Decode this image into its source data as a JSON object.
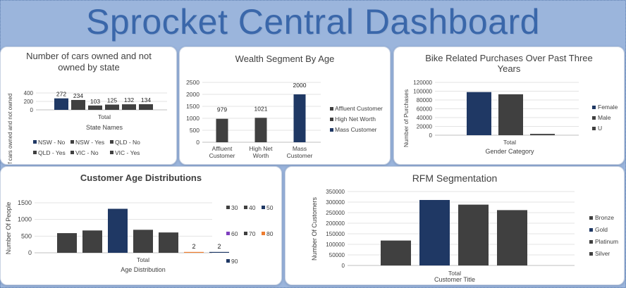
{
  "dashboard": {
    "title": "Sprocket Central Dashboard"
  },
  "colors": {
    "navy": "#1f3864",
    "dark": "#404040",
    "orange": "#ed7d31",
    "purple": "#7f3fbf",
    "background": "#9bb5dc"
  },
  "chart_data": [
    {
      "type": "bar",
      "title": "Number of cars owned and not owned by state",
      "xlabel": "State Names",
      "ylabel": "of cars owned and not owned",
      "categories": [
        "Total"
      ],
      "series": [
        {
          "name": "NSW - No",
          "values": [
            272
          ]
        },
        {
          "name": "NSW - Yes",
          "values": [
            234
          ]
        },
        {
          "name": "QLD - No",
          "values": [
            103
          ]
        },
        {
          "name": "QLD - Yes",
          "values": [
            125
          ]
        },
        {
          "name": "VIC - No",
          "values": [
            132
          ]
        },
        {
          "name": "VIC - Yes",
          "values": [
            134
          ]
        }
      ],
      "yticks": [
        0,
        200,
        400
      ],
      "ylim": [
        0,
        400
      ],
      "legend": "bottom",
      "grid": true
    },
    {
      "type": "bar",
      "title": "Wealth Segment By Age",
      "categories": [
        "Affluent Customer",
        "High Net Worth",
        "Mass Customer"
      ],
      "category_lines": [
        [
          "Affluent",
          "Customer"
        ],
        [
          "High Net",
          "Worth"
        ],
        [
          "Mass",
          "Customer"
        ]
      ],
      "series": [
        {
          "name": "Affluent Customer",
          "values": [
            979,
            null,
            null
          ]
        },
        {
          "name": "High Net Worth",
          "values": [
            null,
            1021,
            null
          ]
        },
        {
          "name": "Mass Customer",
          "values": [
            null,
            null,
            2000
          ]
        }
      ],
      "yticks": [
        0,
        500,
        1000,
        1500,
        2000,
        2500
      ],
      "ylim": [
        0,
        2500
      ],
      "legend": "right",
      "grid": true
    },
    {
      "type": "bar",
      "title": "Bike Related Purchases Over Past Three Years",
      "title_lines": [
        "Bike Related Purchases Over Past Three",
        "Years"
      ],
      "xlabel": "Gender Category",
      "ylabel": "Number of Purchases",
      "categories": [
        "Total"
      ],
      "series": [
        {
          "name": "Female",
          "values": [
            98000
          ]
        },
        {
          "name": "Male",
          "values": [
            93000
          ]
        },
        {
          "name": "U",
          "values": [
            3000
          ]
        }
      ],
      "yticks": [
        0,
        20000,
        40000,
        60000,
        80000,
        100000,
        120000
      ],
      "ylim": [
        0,
        120000
      ],
      "legend": "right",
      "grid": true
    },
    {
      "type": "bar",
      "title": "Customer Age Distributions",
      "xlabel": "Age Distribution",
      "ylabel": "Number Of People",
      "categories": [
        "Total"
      ],
      "series": [
        {
          "name": "30",
          "values": [
            590
          ]
        },
        {
          "name": "40",
          "values": [
            670
          ]
        },
        {
          "name": "50",
          "values": [
            1320
          ]
        },
        {
          "name": "60",
          "values": [
            690
          ]
        },
        {
          "name": "70",
          "values": [
            610
          ]
        },
        {
          "name": "80",
          "values": [
            2
          ]
        },
        {
          "name": "90",
          "values": [
            2
          ]
        }
      ],
      "data_labels": [
        "",
        "",
        "",
        "",
        "",
        "2",
        "2"
      ],
      "yticks": [
        0,
        500,
        1000,
        1500
      ],
      "ylim": [
        0,
        1500
      ],
      "legend": "right",
      "grid": true
    },
    {
      "type": "bar",
      "title": "RFM Segmentation",
      "xlabel": "Customer Title",
      "ylabel": "Number Of Customers",
      "categories": [
        "Total"
      ],
      "series": [
        {
          "name": "Bronze",
          "values": [
            118000
          ]
        },
        {
          "name": "Gold",
          "values": [
            310000
          ]
        },
        {
          "name": "Platinum",
          "values": [
            288000
          ]
        },
        {
          "name": "Silver",
          "values": [
            262000
          ]
        }
      ],
      "yticks": [
        0,
        50000,
        100000,
        150000,
        200000,
        250000,
        300000,
        350000
      ],
      "ylim": [
        0,
        350000
      ],
      "legend": "right",
      "grid": true
    }
  ]
}
